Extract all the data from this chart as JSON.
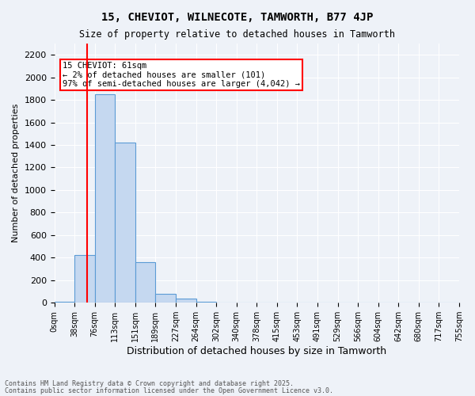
{
  "title1": "15, CHEVIOT, WILNECOTE, TAMWORTH, B77 4JP",
  "title2": "Size of property relative to detached houses in Tamworth",
  "xlabel": "Distribution of detached houses by size in Tamworth",
  "ylabel": "Number of detached properties",
  "bin_labels": [
    "0sqm",
    "38sqm",
    "76sqm",
    "113sqm",
    "151sqm",
    "189sqm",
    "227sqm",
    "264sqm",
    "302sqm",
    "340sqm",
    "378sqm",
    "415sqm",
    "453sqm",
    "491sqm",
    "529sqm",
    "566sqm",
    "604sqm",
    "642sqm",
    "680sqm",
    "717sqm",
    "755sqm"
  ],
  "bar_heights": [
    10,
    420,
    1850,
    1420,
    360,
    80,
    40,
    10,
    0,
    0,
    0,
    0,
    0,
    0,
    0,
    0,
    0,
    0,
    0,
    0
  ],
  "bar_color": "#c5d8f0",
  "bar_edge_color": "#5b9bd5",
  "marker_label": "15 CHEVIOT: 61sqm\n← 2% of detached houses are smaller (101)\n97% of semi-detached houses are larger (4,042) →",
  "ylim": [
    0,
    2300
  ],
  "yticks": [
    0,
    200,
    400,
    600,
    800,
    1000,
    1200,
    1400,
    1600,
    1800,
    2000,
    2200
  ],
  "background_color": "#eef2f8",
  "grid_color": "#ffffff",
  "footer1": "Contains HM Land Registry data © Crown copyright and database right 2025.",
  "footer2": "Contains public sector information licensed under the Open Government Licence v3.0."
}
